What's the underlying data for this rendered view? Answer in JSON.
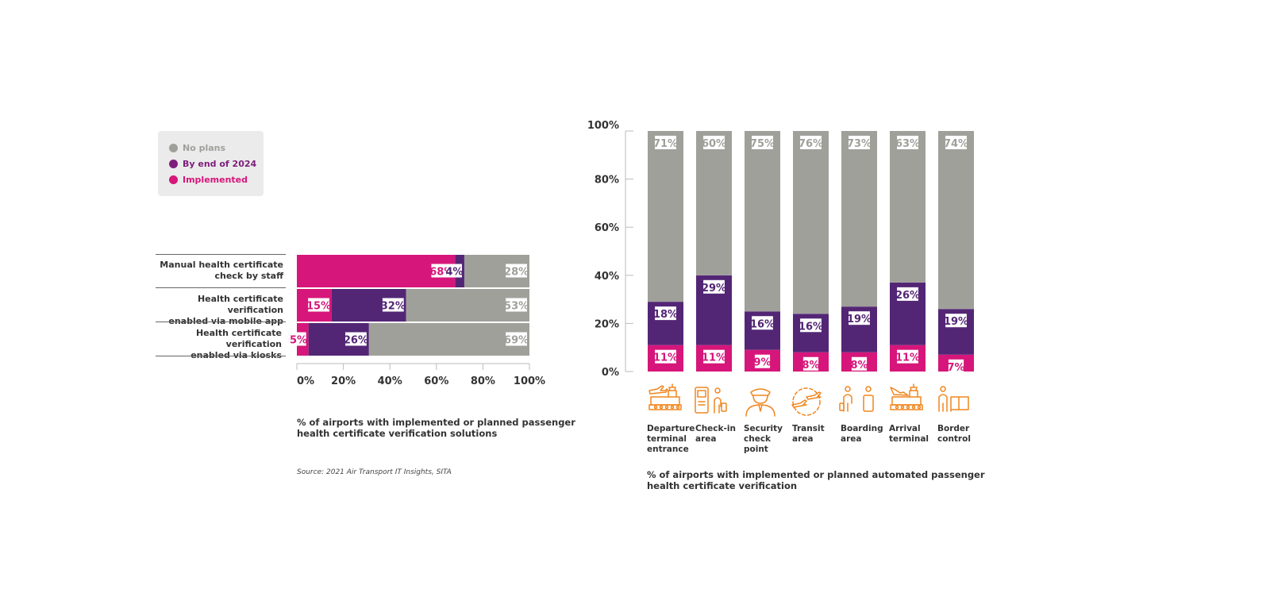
{
  "colors": {
    "no_plans": "#a0a09b",
    "by_2024": "#532675",
    "implemented": "#d6167a",
    "legend_by_2024_text": "#7d1e7c",
    "legend_impl_text": "#d6167a",
    "icon": "#f0861e"
  },
  "legend": {
    "no_plans": "No plans",
    "by_2024": "By end of 2024",
    "implemented": "Implemented"
  },
  "source": "Source: 2021 Air Transport IT Insights, SITA",
  "chart_data": [
    {
      "type": "bar",
      "orientation": "horizontal",
      "stacked": true,
      "caption_line1": "% of airports with implemented or planned passenger",
      "caption_line2": "health certificate verification solutions",
      "categories": [
        [
          "Manual health certificate",
          "check by staff"
        ],
        [
          "Health certificate verification",
          "enabled via mobile app"
        ],
        [
          "Health certificate verification",
          "enabled via kiosks"
        ]
      ],
      "series": [
        {
          "name": "Implemented",
          "values": [
            68,
            15,
            5
          ]
        },
        {
          "name": "By end of 2024",
          "values": [
            4,
            32,
            26
          ]
        },
        {
          "name": "No plans",
          "values": [
            28,
            53,
            69
          ]
        }
      ],
      "x_ticks": [
        "0%",
        "20%",
        "40%",
        "60%",
        "80%",
        "100%"
      ],
      "xlim": [
        0,
        100
      ]
    },
    {
      "type": "bar",
      "orientation": "vertical",
      "stacked": true,
      "caption_line1": "% of airports with implemented or planned automated passenger",
      "caption_line2": "health certificate verification",
      "categories": [
        [
          "Departure",
          "terminal",
          "entrance"
        ],
        [
          "Check-in",
          "area"
        ],
        [
          "Security",
          "check",
          "point"
        ],
        [
          "Transit",
          "area"
        ],
        [
          "Boarding",
          "area"
        ],
        [
          "Arrival",
          "terminal"
        ],
        [
          "Border",
          "control"
        ]
      ],
      "icons": [
        "departure-terminal-icon",
        "check-in-kiosk-icon",
        "security-officer-icon",
        "transit-plane-icon",
        "boarding-passenger-icon",
        "arrival-terminal-icon",
        "border-control-icon"
      ],
      "series": [
        {
          "name": "Implemented",
          "values": [
            11,
            11,
            9,
            8,
            8,
            11,
            7
          ]
        },
        {
          "name": "By end of 2024",
          "values": [
            18,
            29,
            16,
            16,
            19,
            26,
            19
          ]
        },
        {
          "name": "No plans",
          "values": [
            71,
            60,
            75,
            76,
            73,
            63,
            74
          ]
        }
      ],
      "y_ticks": [
        "0%",
        "20%",
        "40%",
        "60%",
        "80%",
        "100%"
      ],
      "ylim": [
        0,
        100
      ]
    }
  ]
}
